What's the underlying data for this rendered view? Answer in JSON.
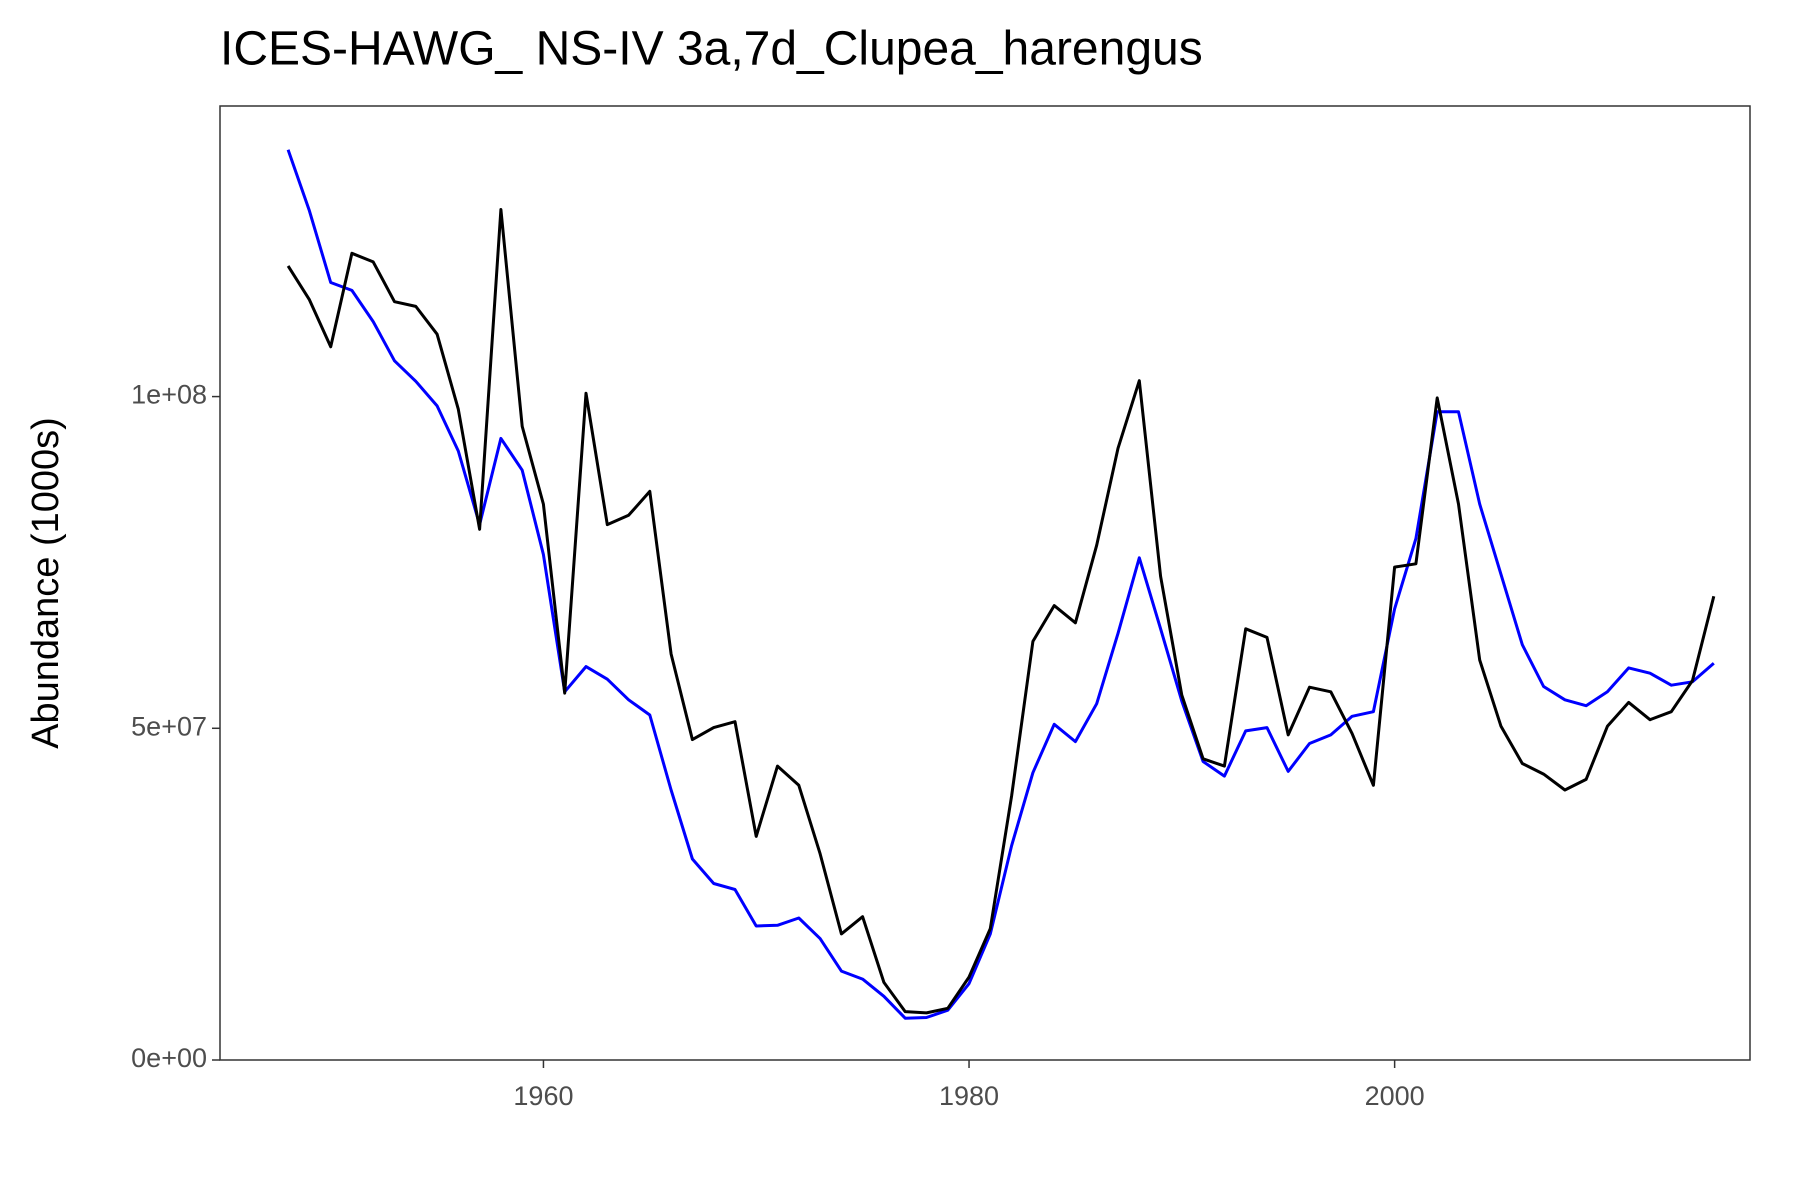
{
  "chart_data": {
    "type": "line",
    "title": "ICES-HAWG_ NS-IV 3a,7d_Clupea_harengus",
    "y_label": "Abundance (1000s)",
    "x": [
      1948,
      1949,
      1950,
      1951,
      1952,
      1953,
      1954,
      1955,
      1956,
      1957,
      1958,
      1959,
      1960,
      1961,
      1962,
      1963,
      1964,
      1965,
      1966,
      1967,
      1968,
      1969,
      1970,
      1971,
      1972,
      1973,
      1974,
      1975,
      1976,
      1977,
      1978,
      1979,
      1980,
      1981,
      1982,
      1983,
      1984,
      1985,
      1986,
      1987,
      1988,
      1989,
      1990,
      1991,
      1992,
      1993,
      1994,
      1995,
      1996,
      1997,
      1998,
      1999,
      2000,
      2001,
      2002,
      2003,
      2004,
      2005,
      2006,
      2007,
      2008,
      2009,
      2010,
      2011,
      2012,
      2013,
      2014,
      2015
    ],
    "series": [
      {
        "color": "#0000ff",
        "values": [
          137200000.0,
          128000000.0,
          117200000.0,
          116000000.0,
          111300000.0,
          105400000.0,
          102300000.0,
          98600000.0,
          91800000.0,
          80700000.0,
          93700000.0,
          88900000.0,
          76200000.0,
          55500000.0,
          59300000.0,
          57400000.0,
          54300000.0,
          52000000.0,
          40700000.0,
          30300000.0,
          26600000.0,
          25700000.0,
          20200000.0,
          20300000.0,
          21400000.0,
          18300000.0,
          13400000.0,
          12200000.0,
          9600000.0,
          6300000.0,
          6400000.0,
          7500000.0,
          11500000.0,
          19000000.0,
          32300000.0,
          43300000.0,
          50600000.0,
          48000000.0,
          53700000.0,
          64300000.0,
          75700000.0,
          65000000.0,
          54100000.0,
          45000000.0,
          42800000.0,
          49600000.0,
          50100000.0,
          43500000.0,
          47700000.0,
          49000000.0,
          51800000.0,
          52500000.0,
          68000000.0,
          78600000.0,
          97700000.0,
          97700000.0,
          83800000.0,
          73200000.0,
          62600000.0,
          56300000.0,
          54300000.0,
          53400000.0,
          55500000.0,
          59100000.0,
          58300000.0,
          56500000.0,
          57000000.0,
          59800000.0
        ]
      },
      {
        "color": "#000000",
        "values": [
          119700000.0,
          114600000.0,
          107500000.0,
          121600000.0,
          120300000.0,
          114300000.0,
          113600000.0,
          109400000.0,
          98100000.0,
          80000000.0,
          128200000.0,
          95500000.0,
          83800000.0,
          55300000.0,
          100500000.0,
          80700000.0,
          82100000.0,
          85700000.0,
          61200000.0,
          48300000.0,
          50100000.0,
          51000000.0,
          33700000.0,
          44300000.0,
          41400000.0,
          31100000.0,
          19000000.0,
          21600000.0,
          11700000.0,
          7300000.0,
          7100000.0,
          7800000.0,
          12500000.0,
          19800000.0,
          39800000.0,
          63100000.0,
          68500000.0,
          65900000.0,
          77600000.0,
          92200000.0,
          102400000.0,
          72900000.0,
          55000000.0,
          45400000.0,
          44300000.0,
          65000000.0,
          63700000.0,
          49000000.0,
          56200000.0,
          55500000.0,
          49200000.0,
          41400000.0,
          74300000.0,
          74800000.0,
          99800000.0,
          83800000.0,
          60300000.0,
          50300000.0,
          44700000.0,
          43100000.0,
          40700000.0,
          42300000.0,
          50300000.0,
          53900000.0,
          51300000.0,
          52500000.0,
          57200000.0,
          69900000.0
        ]
      }
    ],
    "xlim": [
      1944.8,
      2016.7
    ],
    "xticks": [
      1960,
      1980,
      2000
    ],
    "ylim": [
      0,
      143800000.0
    ],
    "yticks": [
      {
        "value": 0,
        "label": "0e+00"
      },
      {
        "value": 50000000,
        "label": "5e+07"
      },
      {
        "value": 100000000,
        "label": "1e+08"
      }
    ],
    "grid": false
  }
}
